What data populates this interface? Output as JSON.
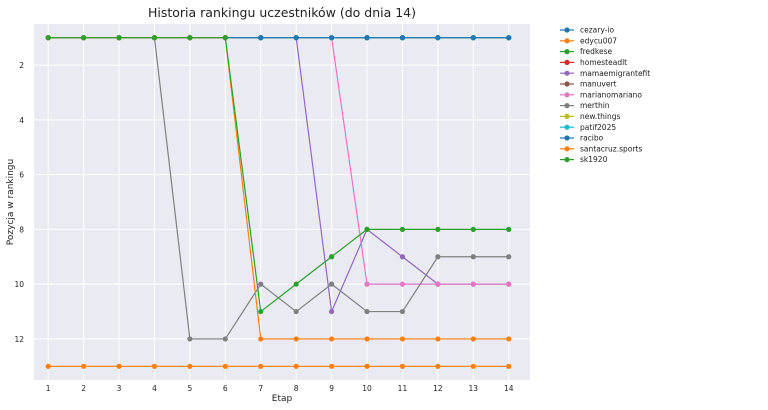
{
  "chart_data": {
    "type": "line",
    "title": "Historia rankingu uczestników (do dnia 14)",
    "xlabel": "Etap",
    "ylabel": "Pozycja w rankingu",
    "x": [
      1,
      2,
      3,
      4,
      5,
      6,
      7,
      8,
      9,
      10,
      11,
      12,
      13,
      14
    ],
    "xlim": [
      0.6,
      14.6
    ],
    "ylim": [
      13.5,
      0.5
    ],
    "y_inverted": true,
    "yticks": [
      2,
      4,
      6,
      8,
      10,
      12
    ],
    "grid": true,
    "legend_position": "outside-right",
    "series": [
      {
        "name": "cezary-io",
        "color": "#1f77b4",
        "values": [
          1,
          1,
          1,
          1,
          1,
          1,
          1,
          1,
          1,
          1,
          1,
          1,
          1,
          1
        ]
      },
      {
        "name": "edycu007",
        "color": "#ff7f0e",
        "values": [
          13,
          13,
          13,
          13,
          13,
          13,
          13,
          13,
          13,
          13,
          13,
          13,
          13,
          13
        ]
      },
      {
        "name": "fredkese",
        "color": "#2ca02c",
        "values": [
          1,
          1,
          1,
          1,
          1,
          1,
          1,
          1,
          1,
          1,
          1,
          1,
          1,
          1
        ]
      },
      {
        "name": "homesteadlt",
        "color": "#d62728",
        "values": [
          1,
          1,
          1,
          1,
          1,
          1,
          1,
          1,
          1,
          1,
          1,
          1,
          1,
          1
        ]
      },
      {
        "name": "mamaemigrantefit",
        "color": "#9467bd",
        "values": [
          1,
          1,
          1,
          1,
          1,
          1,
          1,
          1,
          11,
          8,
          9,
          10,
          10,
          10
        ]
      },
      {
        "name": "manuvert",
        "color": "#8c564b",
        "values": [
          1,
          1,
          1,
          1,
          1,
          1,
          1,
          1,
          1,
          1,
          1,
          1,
          1,
          1
        ]
      },
      {
        "name": "marianomariano",
        "color": "#e377c2",
        "values": [
          1,
          1,
          1,
          1,
          1,
          1,
          1,
          1,
          1,
          10,
          10,
          10,
          10,
          10
        ]
      },
      {
        "name": "merthin",
        "color": "#7f7f7f",
        "values": [
          1,
          1,
          1,
          1,
          12,
          12,
          10,
          11,
          10,
          11,
          11,
          9,
          9,
          9
        ]
      },
      {
        "name": "new.things",
        "color": "#bcbd22",
        "values": [
          1,
          1,
          1,
          1,
          1,
          1,
          1,
          1,
          1,
          1,
          1,
          1,
          1,
          1
        ]
      },
      {
        "name": "patif2025",
        "color": "#17becf",
        "values": [
          1,
          1,
          1,
          1,
          1,
          1,
          1,
          1,
          1,
          1,
          1,
          1,
          1,
          1
        ]
      },
      {
        "name": "racibo",
        "color": "#1f77b4",
        "values": [
          1,
          1,
          1,
          1,
          1,
          1,
          1,
          1,
          1,
          1,
          1,
          1,
          1,
          1
        ]
      },
      {
        "name": "santacruz.sports",
        "color": "#ff7f0e",
        "values": [
          1,
          1,
          1,
          1,
          1,
          1,
          12,
          12,
          12,
          12,
          12,
          12,
          12,
          12
        ]
      },
      {
        "name": "sk1920",
        "color": "#2ca02c",
        "values": [
          1,
          1,
          1,
          1,
          1,
          1,
          11,
          10,
          9,
          8,
          8,
          8,
          8,
          8
        ]
      }
    ]
  }
}
